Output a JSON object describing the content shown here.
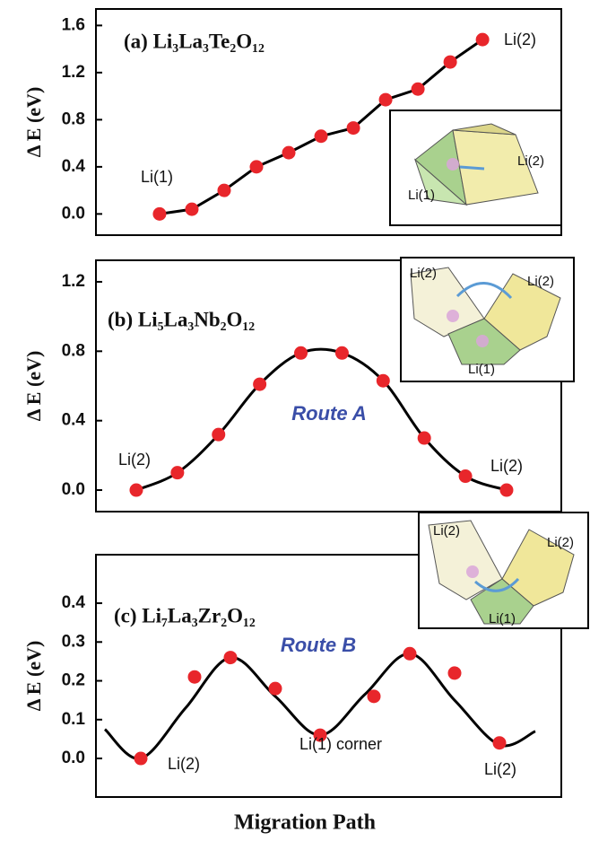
{
  "chart_data": [
    {
      "type": "line",
      "title": "(a) Li₃La₃Te₂O₁₂",
      "ylabel": "Δ E (eV)",
      "xlim": [
        -1.97,
        12.44
      ],
      "ylim": [
        -0.18,
        1.74
      ],
      "yticks": [
        {
          "value": 0,
          "label": "0.0"
        },
        {
          "value": 0.4,
          "label": "0.4"
        },
        {
          "value": 0.8,
          "label": "0.8"
        },
        {
          "value": 1.2,
          "label": "1.2"
        },
        {
          "value": 1.6,
          "label": "1.6"
        }
      ],
      "series": [
        {
          "x": [
            0,
            1,
            2,
            3,
            4,
            5,
            6,
            7,
            8,
            9,
            10
          ],
          "values": [
            0,
            0.04,
            0.2,
            0.4,
            0.52,
            0.66,
            0.73,
            0.97,
            1.06,
            1.29,
            1.48
          ],
          "color": "#e8262b",
          "line_color": "#000000",
          "markers": true,
          "line": true,
          "smooth": false
        }
      ],
      "annotations": [
        "Li(1)",
        "Li(2)"
      ],
      "inset_labels": [
        "Li(2)",
        "Li(1)"
      ]
    },
    {
      "type": "line",
      "title": "(b) Li₅La₃Nb₂O₁₂",
      "ylabel": "Δ E (eV)",
      "xlim": [
        -0.98,
        10.33
      ],
      "ylim": [
        -0.124,
        1.324
      ],
      "yticks": [
        {
          "value": 0,
          "label": "0.0"
        },
        {
          "value": 0.4,
          "label": "0.4"
        },
        {
          "value": 0.8,
          "label": "0.8"
        },
        {
          "value": 1.2,
          "label": "1.2"
        }
      ],
      "series": [
        {
          "x": [
            0,
            1,
            2,
            3,
            4,
            5,
            6,
            7,
            8,
            9
          ],
          "values": [
            0,
            0.1,
            0.32,
            0.61,
            0.79,
            0.79,
            0.63,
            0.3,
            0.08,
            0
          ],
          "color": "#e8262b",
          "line_color": "#000000",
          "markers": true,
          "line": true,
          "smooth": true
        }
      ],
      "annotations": [
        "Li(2)",
        "Li(2)",
        "Route A"
      ],
      "inset_labels": [
        "Li(2)",
        "Li(2)",
        "Li(1)"
      ]
    },
    {
      "type": "line",
      "title": "(c) Li₇La₃Zr₂O₁₂",
      "ylabel": "Δ E (eV)",
      "xlim": [
        -1,
        9.38
      ],
      "ylim": [
        -0.0994,
        0.525
      ],
      "yticks": [
        {
          "value": 0,
          "label": "0.0"
        },
        {
          "value": 0.1,
          "label": "0.1"
        },
        {
          "value": 0.2,
          "label": "0.2"
        },
        {
          "value": 0.3,
          "label": "0.3"
        },
        {
          "value": 0.4,
          "label": "0.4"
        }
      ],
      "series": [
        {
          "x": [
            -0.8,
            0,
            1,
            2,
            3,
            4,
            5,
            6,
            7,
            8,
            8.8
          ],
          "values": [
            0.075,
            0,
            0.13,
            0.26,
            0.16,
            0.06,
            0.165,
            0.27,
            0.15,
            0.035,
            0.07
          ],
          "line_color": "#000000",
          "markers": false,
          "line": true,
          "smooth": true
        },
        {
          "x": [
            0,
            1.2,
            2,
            3,
            4,
            5.2,
            6,
            7,
            8
          ],
          "values": [
            0,
            0.21,
            0.26,
            0.18,
            0.06,
            0.16,
            0.27,
            0.22,
            0.04
          ],
          "color": "#e8262b",
          "markers": true,
          "line": false
        }
      ],
      "annotations": [
        "Li(2)",
        "Li(1) corner",
        "Li(2)",
        "Route B"
      ],
      "inset_labels": [
        "Li(2)",
        "Li(2)",
        "Li(1)"
      ]
    }
  ],
  "xlabel": "Migration Path"
}
